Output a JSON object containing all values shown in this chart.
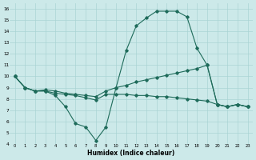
{
  "xlabel": "Humidex (Indice chaleur)",
  "background_color": "#cce9e9",
  "grid_color": "#aad4d4",
  "line_color": "#1e6b5a",
  "xlim": [
    -0.5,
    23.5
  ],
  "ylim": [
    4,
    16.5
  ],
  "yticks": [
    4,
    5,
    6,
    7,
    8,
    9,
    10,
    11,
    12,
    13,
    14,
    15,
    16
  ],
  "xticks": [
    0,
    1,
    2,
    3,
    4,
    5,
    6,
    7,
    8,
    9,
    10,
    11,
    12,
    13,
    14,
    15,
    16,
    17,
    18,
    19,
    20,
    21,
    22,
    23
  ],
  "line1_x": [
    0,
    1,
    2,
    3,
    4,
    5,
    6,
    7,
    8,
    9,
    10,
    11,
    12,
    13,
    14,
    15,
    16,
    17,
    18,
    19,
    20,
    21,
    22,
    23
  ],
  "line1_y": [
    10.0,
    9.0,
    8.7,
    8.7,
    8.3,
    7.3,
    5.8,
    5.5,
    4.3,
    5.5,
    9.0,
    12.3,
    14.5,
    15.2,
    15.8,
    15.8,
    15.8,
    15.3,
    12.5,
    11.0,
    7.5,
    7.3,
    7.5,
    7.3
  ],
  "line2_x": [
    0,
    1,
    2,
    3,
    4,
    5,
    6,
    7,
    8,
    9,
    10,
    11,
    12,
    13,
    14,
    15,
    16,
    17,
    18,
    19,
    20,
    21,
    22,
    23
  ],
  "line2_y": [
    10.0,
    9.0,
    8.7,
    8.8,
    8.7,
    8.5,
    8.4,
    8.3,
    8.2,
    8.7,
    9.0,
    9.2,
    9.5,
    9.7,
    9.9,
    10.1,
    10.3,
    10.5,
    10.7,
    11.0,
    7.5,
    7.3,
    7.5,
    7.3
  ],
  "line3_x": [
    0,
    1,
    2,
    3,
    4,
    5,
    6,
    7,
    8,
    9,
    10,
    11,
    12,
    13,
    14,
    15,
    16,
    17,
    18,
    19,
    20,
    21,
    22,
    23
  ],
  "line3_y": [
    10.0,
    9.0,
    8.7,
    8.7,
    8.5,
    8.4,
    8.3,
    8.1,
    7.9,
    8.4,
    8.4,
    8.4,
    8.3,
    8.3,
    8.2,
    8.2,
    8.1,
    8.0,
    7.9,
    7.8,
    7.5,
    7.3,
    7.5,
    7.3
  ]
}
